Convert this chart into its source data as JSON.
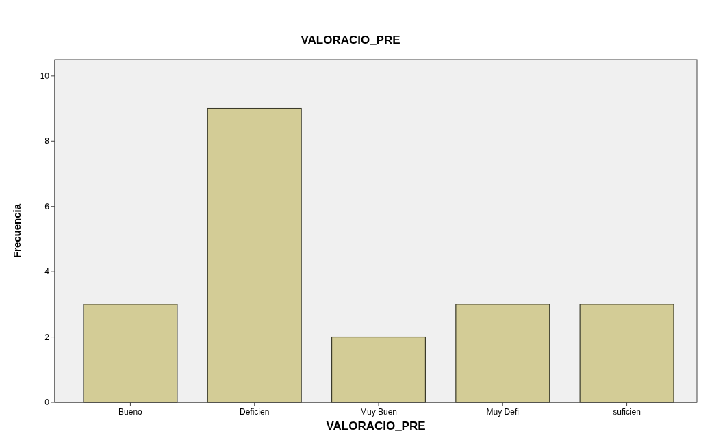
{
  "chart_data": {
    "type": "bar",
    "title": "VALORACIO_PRE",
    "xlabel": "VALORACIO_PRE",
    "ylabel": "Frecuencia",
    "categories": [
      "Bueno",
      "Deficien",
      "Muy Buen",
      "Muy Defi",
      "suficien"
    ],
    "values": [
      3,
      9,
      2,
      3,
      3
    ],
    "color": "#d3cc96",
    "ylim": [
      0,
      10.5
    ],
    "yticks": [
      0,
      2,
      4,
      6,
      8,
      10
    ],
    "grid": false
  }
}
